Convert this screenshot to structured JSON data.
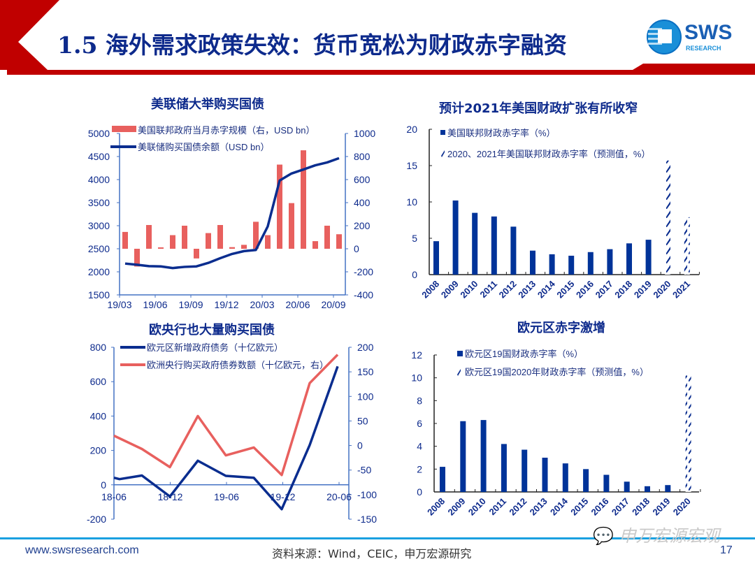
{
  "header": {
    "title": "1.5 海外需求政策失效：货币宽松为财政赤字融资",
    "logo_text": "SWS",
    "logo_subtext": "RESEARCH"
  },
  "colors": {
    "brand_red": "#c00000",
    "navy": "#0a2d8f",
    "bar_blue": "#003399",
    "salmon": "#e8605e",
    "axis_blue": "#4472c4",
    "footer_line": "#1aa0e0"
  },
  "footer": {
    "site": "www.swsresearch.com",
    "source": "资料来源：Wind，CEIC，申万宏源研究",
    "page": "17",
    "watermark": "申万宏源宏观"
  },
  "chart_data": [
    {
      "id": "fed",
      "type": "bar+line",
      "title": "美联储大举购买国债",
      "x": [
        "19/03",
        "19/04",
        "19/05",
        "19/06",
        "19/07",
        "19/08",
        "19/09",
        "19/10",
        "19/11",
        "19/12",
        "20/01",
        "20/02",
        "20/03",
        "20/04",
        "20/05",
        "20/06",
        "20/07",
        "20/08",
        "20/09"
      ],
      "xticks": [
        "19/03",
        "19/06",
        "19/09",
        "19/12",
        "20/03",
        "20/06",
        "20/09"
      ],
      "series": [
        {
          "name": "美国联邦政府当月赤字规模（右，USD bn）",
          "type": "bar",
          "axis": "right",
          "values": [
            146,
            -154,
            206,
            12,
            118,
            200,
            -84,
            136,
            206,
            14,
            34,
            234,
            118,
            730,
            396,
            854,
            66,
            200,
            126
          ]
        },
        {
          "name": "美联储购买国债余额（USD bn）",
          "type": "line",
          "axis": "left",
          "values": [
            2179,
            2153,
            2123,
            2118,
            2082,
            2107,
            2118,
            2194,
            2296,
            2388,
            2449,
            2474,
            2985,
            3980,
            4132,
            4219,
            4310,
            4372,
            4464
          ]
        }
      ],
      "ylim_left": [
        1500,
        5000
      ],
      "yticks_left": [
        "5000",
        "4500",
        "4000",
        "3500",
        "3000",
        "2500",
        "2000",
        "1500"
      ],
      "ylim_right": [
        -400,
        1000
      ],
      "yticks_right": [
        "1000",
        "800",
        "600",
        "400",
        "200",
        "0",
        "-200",
        "-400"
      ]
    },
    {
      "id": "us_deficit",
      "type": "bar",
      "title": "预计2021年美国财政扩张有所收窄",
      "categories": [
        "2008",
        "2009",
        "2010",
        "2011",
        "2012",
        "2013",
        "2014",
        "2015",
        "2016",
        "2017",
        "2018",
        "2019",
        "2020",
        "2021"
      ],
      "series": [
        {
          "name": "美国联邦财政赤字率（%）",
          "values": [
            4.6,
            10.2,
            8.5,
            8.0,
            6.6,
            3.3,
            2.8,
            2.6,
            3.1,
            3.5,
            4.3,
            4.8,
            null,
            null
          ]
        },
        {
          "name": "2020、2021年美国联邦财政赤字率（预测值，%）",
          "hatched": true,
          "values": [
            null,
            null,
            null,
            null,
            null,
            null,
            null,
            null,
            null,
            null,
            null,
            null,
            15.7,
            7.9
          ]
        }
      ],
      "ylim": [
        0,
        20
      ],
      "yticks": [
        "20",
        "15",
        "10",
        "5",
        "0"
      ]
    },
    {
      "id": "ecb",
      "type": "line",
      "title": "欧央行也大量购买国债",
      "x": [
        0,
        0.2,
        1,
        2,
        3,
        4,
        5,
        6,
        7,
        8
      ],
      "xticks": [
        "18-06",
        "18-12",
        "19-06",
        "19-12",
        "20-06"
      ],
      "series": [
        {
          "name": "欧元区新增政府债务（十亿欧元）",
          "axis": "left",
          "values": [
            41,
            33,
            54,
            -68,
            140,
            52,
            41,
            -142,
            231,
            689
          ]
        },
        {
          "name": "欧洲央行购买政府债券数额（十亿欧元，右）",
          "axis": "right",
          "values": [
            20,
            null,
            -7,
            -44,
            60,
            -20,
            -4,
            -60,
            127,
            185
          ]
        }
      ],
      "ylim_left": [
        -200,
        800
      ],
      "yticks_left": [
        "800",
        "600",
        "400",
        "200",
        "0",
        "-200"
      ],
      "ylim_right": [
        -150,
        200
      ],
      "yticks_right": [
        "200",
        "150",
        "100",
        "50",
        "0",
        "-50",
        "-100",
        "-150"
      ]
    },
    {
      "id": "eu_deficit",
      "type": "bar",
      "title": "欧元区赤字激增",
      "categories": [
        "2008",
        "2009",
        "2010",
        "2011",
        "2012",
        "2013",
        "2014",
        "2015",
        "2016",
        "2017",
        "2018",
        "2019",
        "2020"
      ],
      "series": [
        {
          "name": "欧元区19国财政赤字率（%）",
          "values": [
            2.2,
            6.2,
            6.3,
            4.2,
            3.7,
            3.0,
            2.5,
            2.0,
            1.5,
            0.9,
            0.5,
            0.6,
            null
          ]
        },
        {
          "name": "欧元区19国2020年财政赤字率（预测值，%）",
          "hatched": true,
          "values": [
            null,
            null,
            null,
            null,
            null,
            null,
            null,
            null,
            null,
            null,
            null,
            null,
            10.2
          ]
        }
      ],
      "ylim": [
        0,
        12
      ],
      "yticks": [
        "12",
        "10",
        "8",
        "6",
        "4",
        "2",
        "0"
      ]
    }
  ]
}
